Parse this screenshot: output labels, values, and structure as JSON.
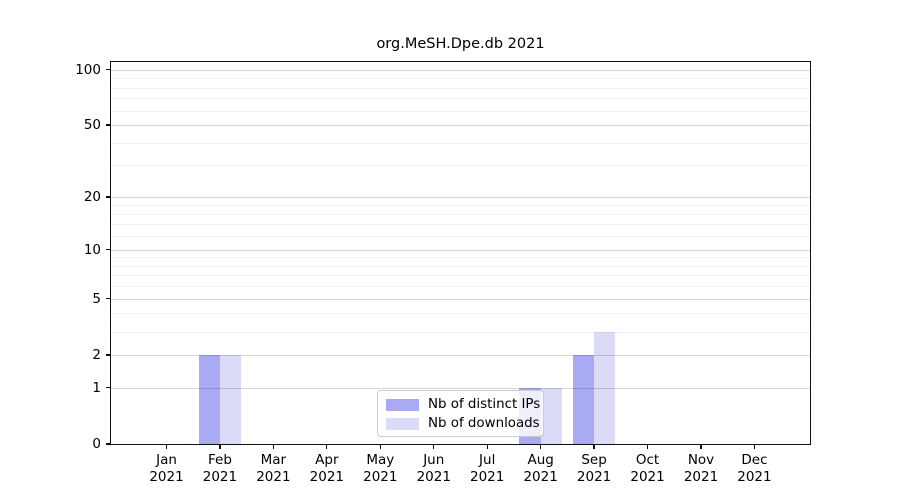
{
  "title": "org.MeSH.Dpe.db 2021",
  "chart_data": {
    "type": "bar",
    "title": "org.MeSH.Dpe.db 2021",
    "categories": [
      "Jan",
      "Feb",
      "Mar",
      "Apr",
      "May",
      "Jun",
      "Jul",
      "Aug",
      "Sep",
      "Oct",
      "Nov",
      "Dec"
    ],
    "category_year": "2021",
    "series": [
      {
        "name": "Nb of distinct IPs",
        "color": "#a9a9f4",
        "values": [
          0,
          2,
          0,
          0,
          0,
          0,
          0,
          1,
          2,
          0,
          0,
          0
        ]
      },
      {
        "name": "Nb of downloads",
        "color": "#dbdbf8",
        "values": [
          0,
          2,
          0,
          0,
          0,
          0,
          0,
          1,
          3,
          0,
          0,
          0
        ]
      }
    ],
    "xlabel": "",
    "ylabel": "",
    "yscale": "log1p",
    "ylim": [
      0,
      110
    ],
    "yticks": [
      0,
      1,
      2,
      5,
      10,
      20,
      50,
      100
    ],
    "yticks_minor": [
      3,
      4,
      6,
      7,
      8,
      9,
      12,
      14,
      16,
      18,
      30,
      40,
      60,
      70,
      80,
      90
    ],
    "grid": "horizontal-on",
    "legend_position": "inside-bottom-center"
  },
  "colors": {
    "axis": "#111111",
    "grid_major": "#d9d9d9",
    "grid_minor": "#f2f2f2",
    "background": "#ffffff"
  }
}
